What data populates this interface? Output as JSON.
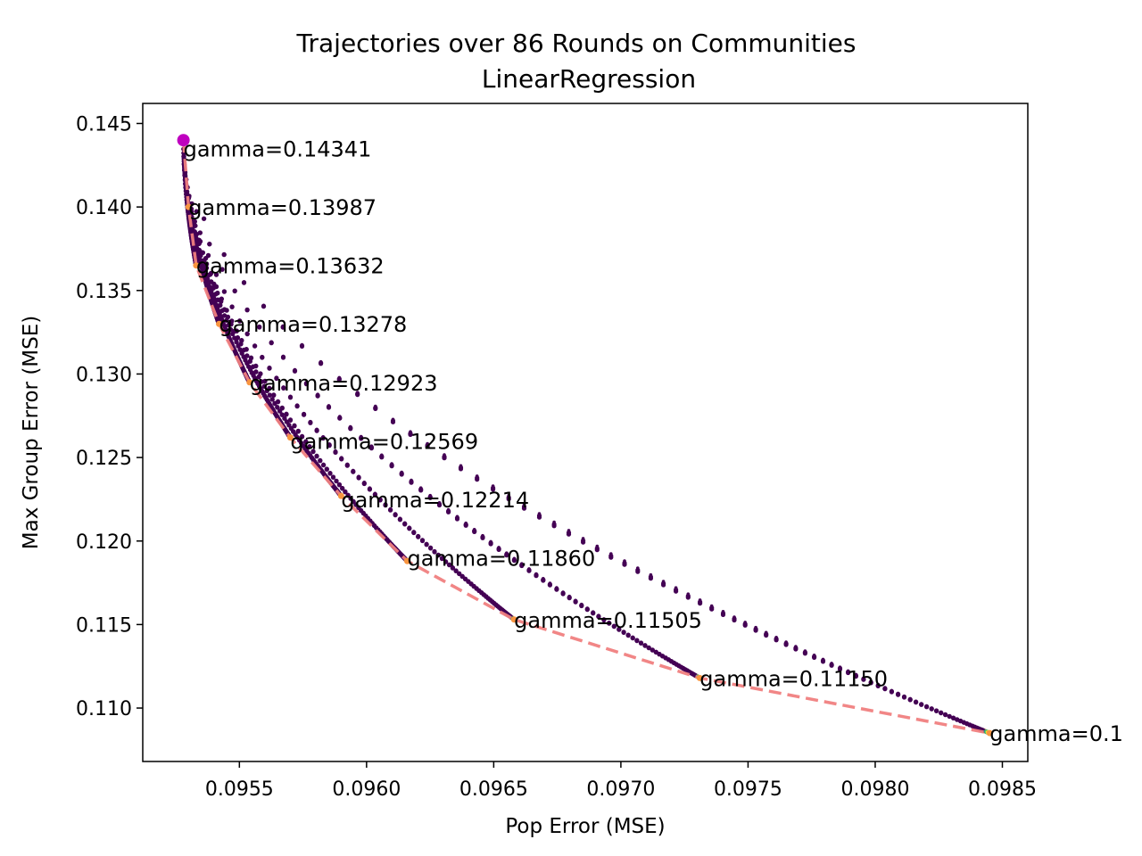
{
  "chart_data": {
    "type": "scatter",
    "title": "Trajectories over 86 Rounds on Communities",
    "subtitle": "LinearRegression",
    "xlabel": "Pop Error (MSE)",
    "ylabel": "Max Group Error (MSE)",
    "xlim": [
      0.09512,
      0.0986
    ],
    "ylim": [
      0.1068,
      0.1462
    ],
    "xticks": [
      0.0955,
      0.096,
      0.0965,
      0.097,
      0.0975,
      0.098,
      0.0985
    ],
    "xtick_labels": [
      "0.0955",
      "0.0960",
      "0.0965",
      "0.0970",
      "0.0975",
      "0.0980",
      "0.0985"
    ],
    "yticks": [
      0.11,
      0.115,
      0.12,
      0.125,
      0.13,
      0.135,
      0.14,
      0.145
    ],
    "ytick_labels": [
      "0.110",
      "0.115",
      "0.120",
      "0.125",
      "0.130",
      "0.135",
      "0.140",
      "0.145"
    ],
    "grid": false,
    "start_point": {
      "x": 0.09528,
      "y": 0.144,
      "color": "#bf00bf"
    },
    "pareto_frontier": {
      "style": "dashed",
      "color": "#f08080",
      "points": [
        {
          "x": 0.09528,
          "y": 0.144
        },
        {
          "x": 0.0953,
          "y": 0.14
        },
        {
          "x": 0.09533,
          "y": 0.1365
        },
        {
          "x": 0.09542,
          "y": 0.133
        },
        {
          "x": 0.09554,
          "y": 0.1295
        },
        {
          "x": 0.0957,
          "y": 0.1262
        },
        {
          "x": 0.0959,
          "y": 0.1227
        },
        {
          "x": 0.09616,
          "y": 0.1188
        },
        {
          "x": 0.09658,
          "y": 0.1153
        },
        {
          "x": 0.09731,
          "y": 0.1118
        },
        {
          "x": 0.09845,
          "y": 0.1085
        }
      ]
    },
    "trajectory_colors": {
      "early": "#440154",
      "late": [
        "#21918c",
        "#5ec962",
        "#fde725",
        "#f89540"
      ]
    },
    "annotations": [
      {
        "text": "gamma=0.14341",
        "x": 0.09528,
        "y": 0.1435
      },
      {
        "text": "gamma=0.13987",
        "x": 0.0953,
        "y": 0.14
      },
      {
        "text": "gamma=0.13632",
        "x": 0.09533,
        "y": 0.1365
      },
      {
        "text": "gamma=0.13278",
        "x": 0.09542,
        "y": 0.133
      },
      {
        "text": "gamma=0.12923",
        "x": 0.09554,
        "y": 0.1295
      },
      {
        "text": "gamma=0.12569",
        "x": 0.0957,
        "y": 0.126
      },
      {
        "text": "gamma=0.12214",
        "x": 0.0959,
        "y": 0.1225
      },
      {
        "text": "gamma=0.11860",
        "x": 0.09616,
        "y": 0.119
      },
      {
        "text": "gamma=0.11505",
        "x": 0.09658,
        "y": 0.1153
      },
      {
        "text": "gamma=0.11150",
        "x": 0.09731,
        "y": 0.1118
      },
      {
        "text": "gamma=0.1",
        "x": 0.09845,
        "y": 0.1085
      }
    ]
  }
}
